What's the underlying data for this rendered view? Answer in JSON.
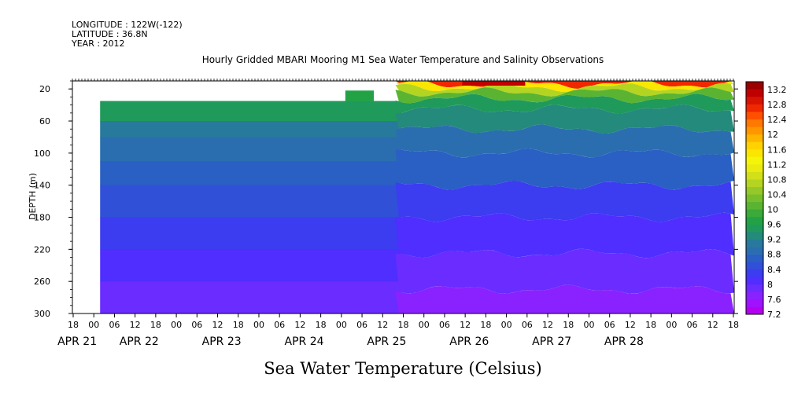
{
  "header": {
    "longitude": "LONGITUDE : 122W(-122)",
    "latitude": "LATITUDE : 36.8N",
    "year": "YEAR : 2012"
  },
  "chart_data": {
    "type": "heatmap",
    "title": "Hourly Gridded MBARI Mooring M1 Sea Water Temperature and Salinity Observations",
    "xlabel": "Sea Water Temperature (Celsius)",
    "ylabel": "DEPTH (m)",
    "ylim": [
      300,
      10
    ],
    "y_ticks": [
      20,
      60,
      100,
      140,
      180,
      220,
      260,
      300
    ],
    "x_hour_labels": [
      "18",
      "00",
      "06",
      "12",
      "18",
      "00",
      "06",
      "12",
      "18",
      "00",
      "06",
      "12",
      "18",
      "00",
      "06",
      "12",
      "18",
      "00",
      "06",
      "12",
      "18",
      "00",
      "06",
      "12",
      "18",
      "00",
      "06",
      "12",
      "18",
      "00",
      "06",
      "12",
      "18"
    ],
    "x_date_labels": [
      "APR 21",
      "APR 22",
      "APR 23",
      "APR 24",
      "APR 25",
      "APR 26",
      "APR 27",
      "APR 28"
    ],
    "colorbar": {
      "labels": [
        "13.2",
        "12.8",
        "12.4",
        "12",
        "11.6",
        "11.2",
        "10.8",
        "10.4",
        "10",
        "9.6",
        "9.2",
        "8.8",
        "8.4",
        "8",
        "7.6",
        "7.2"
      ],
      "levels": [
        7.2,
        7.4,
        7.6,
        7.8,
        8,
        8.2,
        8.4,
        8.6,
        8.8,
        9,
        9.2,
        9.4,
        9.6,
        9.8,
        10,
        10.2,
        10.4,
        10.6,
        10.8,
        11,
        11.2,
        11.4,
        11.6,
        11.8,
        12,
        12.2,
        12.4,
        12.6,
        12.8,
        13,
        13.2,
        13.4
      ],
      "colors": [
        "#b400f0",
        "#a012ff",
        "#8a22ff",
        "#6a2cff",
        "#4f2eff",
        "#3c3cf0",
        "#3050d8",
        "#2a5fc4",
        "#2a6eb0",
        "#287a9c",
        "#238a7c",
        "#1f9a5a",
        "#22a244",
        "#3aaa3a",
        "#5ab432",
        "#78be2c",
        "#96c828",
        "#b4d422",
        "#d2e01a",
        "#ebeb10",
        "#f5f50a",
        "#fae600",
        "#ffd200",
        "#ffb400",
        "#ff9600",
        "#ff7800",
        "#ff5000",
        "#f02800",
        "#d81400",
        "#c00000",
        "#9a0000"
      ]
    },
    "profile_apr21_24": [
      {
        "depth": 35,
        "temp": 9.4
      },
      {
        "depth": 60,
        "temp": 9.1
      },
      {
        "depth": 80,
        "temp": 8.8
      },
      {
        "depth": 110,
        "temp": 8.6
      },
      {
        "depth": 140,
        "temp": 8.4
      },
      {
        "depth": 180,
        "temp": 8.2
      },
      {
        "depth": 220,
        "temp": 8.0
      },
      {
        "depth": 260,
        "temp": 7.8
      },
      {
        "depth": 300,
        "temp": 7.4
      }
    ],
    "surface_apr25_28": [
      {
        "depth": 10,
        "temp": 12.4
      },
      {
        "depth": 15,
        "temp": 11.2
      },
      {
        "depth": 20,
        "temp": 10.4
      },
      {
        "depth": 30,
        "temp": 9.8
      },
      {
        "depth": 50,
        "temp": 9.2
      },
      {
        "depth": 80,
        "temp": 8.8
      }
    ]
  }
}
